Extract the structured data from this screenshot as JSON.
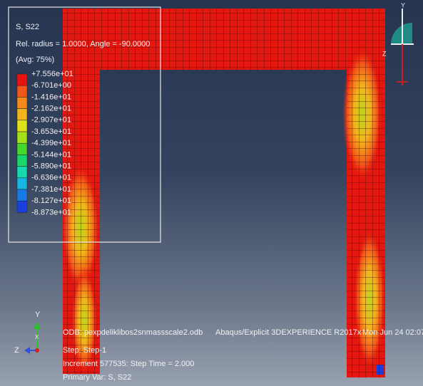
{
  "legend": {
    "title": "S, S22",
    "subtitle": "Rel. radius = 1.0000, Angle = -90.0000",
    "averaging": "(Avg: 75%)",
    "labels": [
      "+7.556e+01",
      "-6.701e+00",
      "-1.416e+01",
      "-2.162e+01",
      "-2.907e+01",
      "-3.653e+01",
      "-4.399e+01",
      "-5.144e+01",
      "-5.890e+01",
      "-6.636e+01",
      "-7.381e+01",
      "-8.127e+01",
      "-8.873e+01"
    ],
    "colors": [
      "#e8120e",
      "#f2561a",
      "#f58a1c",
      "#f1b61c",
      "#dfe21a",
      "#a3e01a",
      "#45d82a",
      "#18d86a",
      "#17d8b0",
      "#18b4e2",
      "#1878e4",
      "#1840e0",
      "#1a12c8"
    ]
  },
  "triad_top": {
    "y": "Y",
    "z": "Z"
  },
  "triad_bottom": {
    "y": "Y",
    "z": "Z",
    "x": "X"
  },
  "info": {
    "odb": "ODB: pexpdeliklibos2snmassscale2.odb",
    "solver": "Abaqus/Explicit 3DEXPERIENCE R2017x",
    "date": "Mon Jun 24 02:07",
    "step": "Step: Step-1",
    "increment": "Increment    577535: Step Time =    2.000",
    "primary": "Primary Var: S, S22"
  }
}
